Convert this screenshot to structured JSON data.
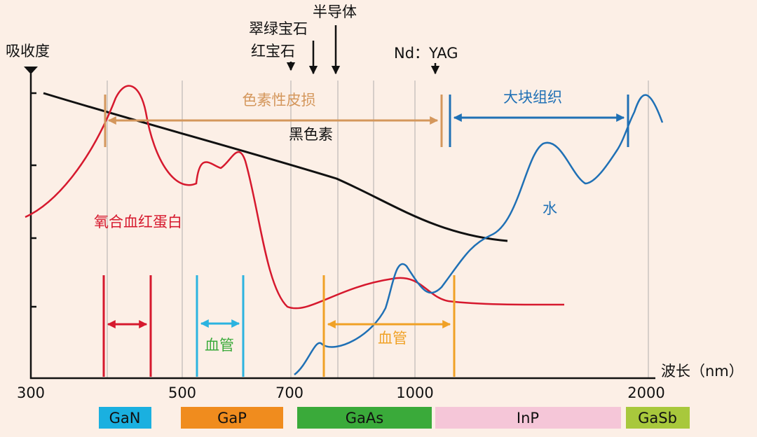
{
  "axis": {
    "y_label": "吸收度",
    "x_label": "波长（nm）",
    "x_ticks": [
      "300",
      "500",
      "700",
      "1000",
      "2000"
    ]
  },
  "lasers": [
    "翠绿宝石",
    "红宝石",
    "半导体",
    "Nd：YAG"
  ],
  "curves": {
    "melanin": "黑色素",
    "hemoglobin": "氧合血红蛋白",
    "water": "水"
  },
  "ranges": {
    "pigment": "色素性皮损",
    "bulk": "大块组织",
    "vessel_1": "血管",
    "vessel_2": "血管"
  },
  "materials": [
    "GaN",
    "GaP",
    "GaAs",
    "InP",
    "GaSb"
  ]
}
